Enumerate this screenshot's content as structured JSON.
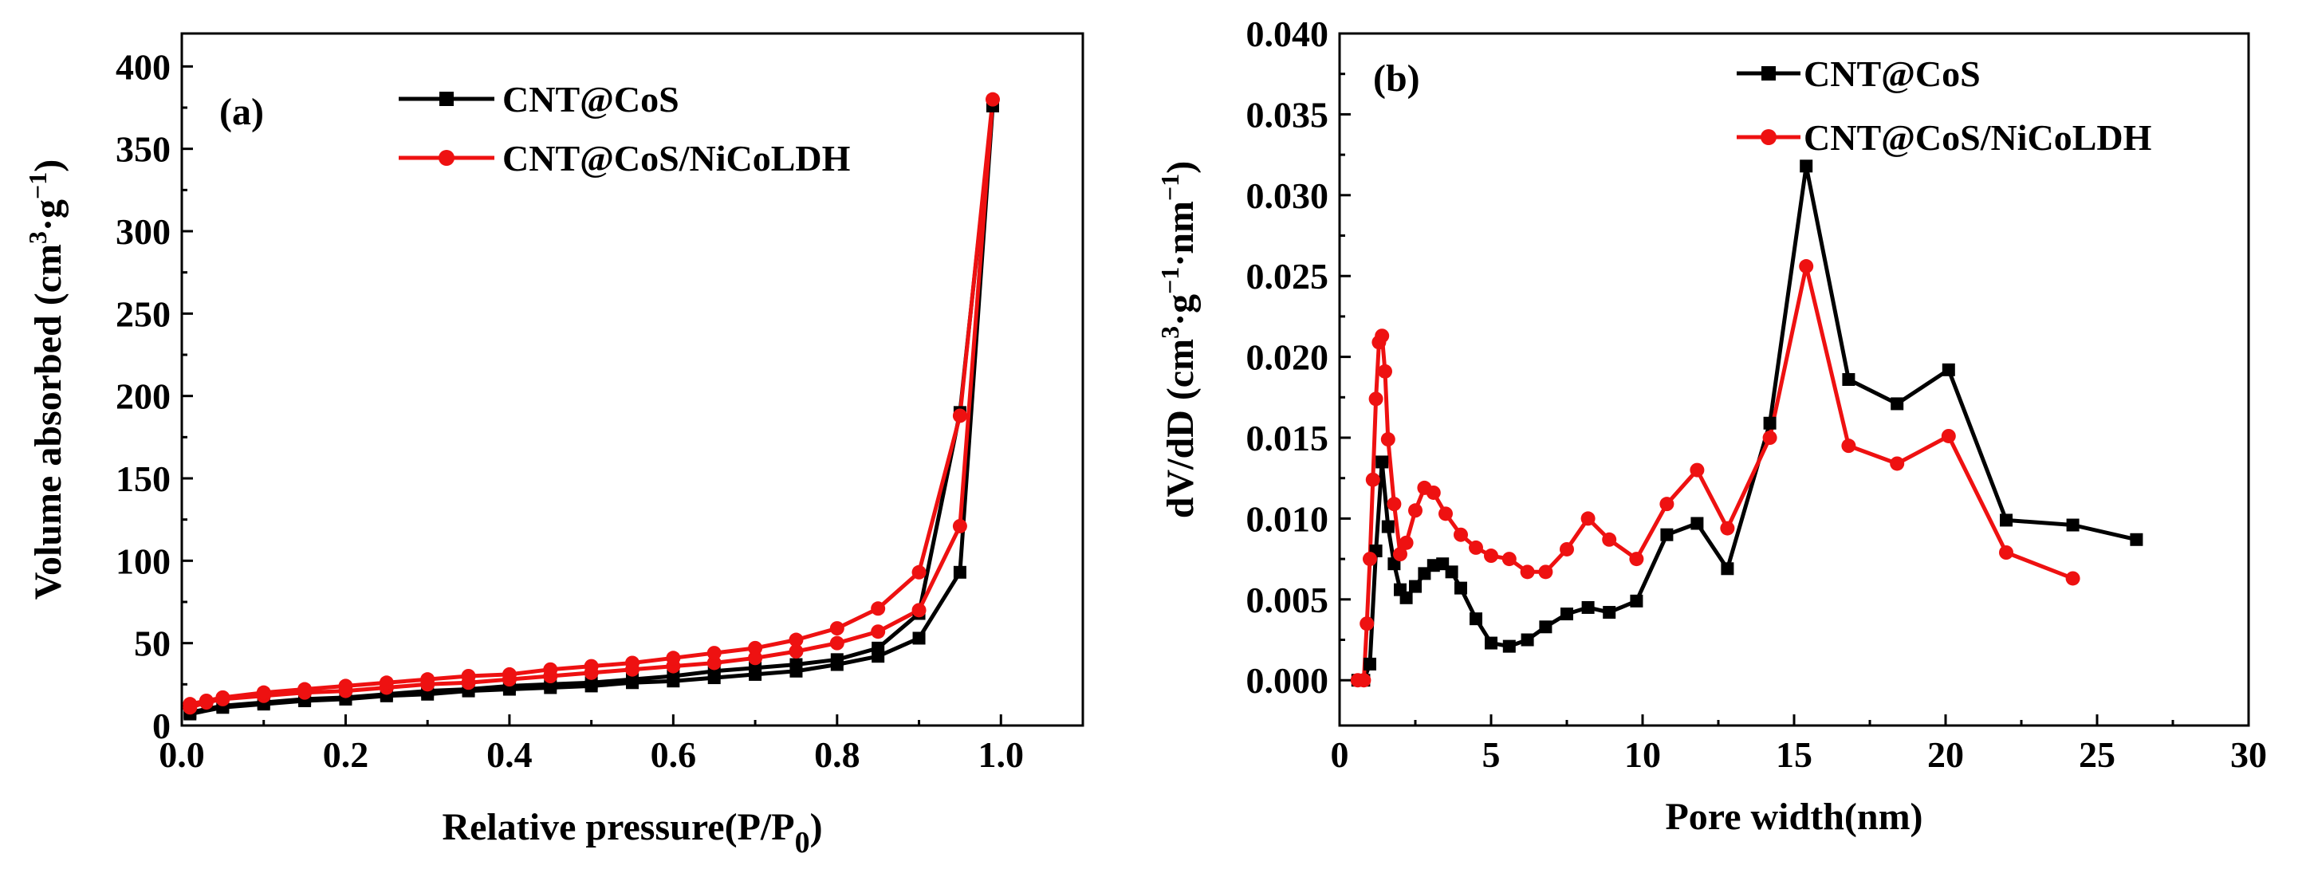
{
  "chart_data": [
    {
      "type": "line",
      "panel_label": "(a)",
      "xlabel": "Relative pressure(P/P",
      "xlabel_sub": "0",
      "xlabel_close": ")",
      "ylabel": "Volume absorbed (cm",
      "ylabel_sup1": "3",
      "ylabel_mid": "·g",
      "ylabel_sup2": "−1",
      "ylabel_close": ")",
      "xlim": [
        0.0,
        1.1
      ],
      "ylim": [
        0,
        420
      ],
      "xticks": [
        0.0,
        0.2,
        0.4,
        0.6,
        0.8,
        1.0
      ],
      "xtick_labels": [
        "0.0",
        "0.2",
        "0.4",
        "0.6",
        "0.8",
        "1.0"
      ],
      "yticks": [
        0,
        50,
        100,
        150,
        200,
        250,
        300,
        350,
        400
      ],
      "ytick_labels": [
        "0",
        "50",
        "100",
        "150",
        "200",
        "250",
        "300",
        "350",
        "400"
      ],
      "legend_position": "top-center",
      "series": [
        {
          "name": "CNT@CoS",
          "color": "#000000",
          "marker": "square",
          "x": [
            0.01,
            0.05,
            0.1,
            0.15,
            0.2,
            0.25,
            0.3,
            0.35,
            0.4,
            0.45,
            0.5,
            0.55,
            0.6,
            0.65,
            0.7,
            0.75,
            0.8,
            0.85,
            0.9,
            0.95,
            0.99,
            0.95,
            0.9,
            0.85,
            0.8,
            0.75,
            0.7,
            0.65,
            0.6,
            0.55,
            0.5,
            0.45,
            0.4,
            0.35,
            0.3,
            0.25,
            0.2,
            0.15,
            0.1,
            0.05,
            0.01
          ],
          "y": [
            7,
            11,
            13,
            15,
            16,
            18,
            19,
            21,
            22,
            23,
            24,
            26,
            27,
            29,
            31,
            33,
            37,
            42,
            53,
            93,
            376,
            190,
            68,
            47,
            40,
            37,
            35,
            33,
            30,
            28,
            26,
            25,
            24,
            22,
            21,
            19,
            17,
            16,
            14,
            12,
            8
          ]
        },
        {
          "name": "CNT@CoS/NiCoLDH",
          "color": "#ee1111",
          "marker": "circle",
          "x": [
            0.01,
            0.03,
            0.05,
            0.1,
            0.15,
            0.2,
            0.25,
            0.3,
            0.35,
            0.4,
            0.45,
            0.5,
            0.55,
            0.6,
            0.65,
            0.7,
            0.75,
            0.8,
            0.85,
            0.9,
            0.95,
            0.99,
            0.95,
            0.9,
            0.85,
            0.8,
            0.75,
            0.7,
            0.65,
            0.6,
            0.55,
            0.5,
            0.45,
            0.4,
            0.35,
            0.3,
            0.25,
            0.2,
            0.15,
            0.1,
            0.05,
            0.03,
            0.01
          ],
          "y": [
            11,
            14,
            16,
            18,
            20,
            21,
            23,
            25,
            26,
            28,
            30,
            32,
            34,
            36,
            38,
            41,
            45,
            50,
            57,
            70,
            121,
            380,
            188,
            93,
            71,
            59,
            52,
            47,
            44,
            41,
            38,
            36,
            34,
            31,
            30,
            28,
            26,
            24,
            22,
            20,
            17,
            15,
            13
          ]
        }
      ]
    },
    {
      "type": "line",
      "panel_label": "(b)",
      "xlabel": "Pore width(nm)",
      "ylabel": "dV/dD (cm",
      "ylabel_sup1": "3",
      "ylabel_mid": "·g",
      "ylabel_sup2": "−1",
      "ylabel_mid2": "·nm",
      "ylabel_sup3": "−1",
      "ylabel_close": ")",
      "xlim": [
        0,
        30
      ],
      "ylim": [
        -0.0028,
        0.04
      ],
      "xticks": [
        0,
        5,
        10,
        15,
        20,
        25,
        30
      ],
      "xtick_labels": [
        "0",
        "5",
        "10",
        "15",
        "20",
        "25",
        "30"
      ],
      "yticks": [
        0.0,
        0.005,
        0.01,
        0.015,
        0.02,
        0.025,
        0.03,
        0.035,
        0.04
      ],
      "ytick_labels": [
        "0.000",
        "0.005",
        "0.010",
        "0.015",
        "0.020",
        "0.025",
        "0.030",
        "0.035",
        "0.040"
      ],
      "legend_position": "top-center",
      "series": [
        {
          "name": "CNT@CoS",
          "color": "#000000",
          "marker": "square",
          "x": [
            0.6,
            0.8,
            1.0,
            1.2,
            1.4,
            1.6,
            1.8,
            2.0,
            2.2,
            2.5,
            2.8,
            3.1,
            3.4,
            3.7,
            4.0,
            4.5,
            5.0,
            5.6,
            6.2,
            6.8,
            7.5,
            8.2,
            8.9,
            9.8,
            10.8,
            11.8,
            12.8,
            14.2,
            15.4,
            16.8,
            18.4,
            20.1,
            22.0,
            24.2,
            26.3
          ],
          "y": [
            0.0,
            0.0,
            0.001,
            0.008,
            0.0135,
            0.0095,
            0.0072,
            0.0056,
            0.0051,
            0.0058,
            0.0066,
            0.0071,
            0.0072,
            0.0067,
            0.0057,
            0.0038,
            0.0023,
            0.0021,
            0.0025,
            0.0033,
            0.0041,
            0.0045,
            0.0042,
            0.0049,
            0.009,
            0.0097,
            0.0069,
            0.0159,
            0.0318,
            0.0186,
            0.0171,
            0.0192,
            0.0099,
            0.0096,
            0.0087
          ]
        },
        {
          "name": "CNT@CoS/NiCoLDH",
          "color": "#ee1111",
          "marker": "circle",
          "x": [
            0.6,
            0.8,
            0.9,
            1.0,
            1.1,
            1.2,
            1.3,
            1.4,
            1.5,
            1.6,
            1.8,
            2.0,
            2.2,
            2.5,
            2.8,
            3.1,
            3.5,
            4.0,
            4.5,
            5.0,
            5.6,
            6.2,
            6.8,
            7.5,
            8.2,
            8.9,
            9.8,
            10.8,
            11.8,
            12.8,
            14.2,
            15.4,
            16.8,
            18.4,
            20.1,
            22.0,
            24.2
          ],
          "y": [
            0.0,
            0.0,
            0.0035,
            0.0075,
            0.0124,
            0.0174,
            0.0209,
            0.0213,
            0.0191,
            0.0149,
            0.0109,
            0.0078,
            0.0085,
            0.0105,
            0.0119,
            0.0116,
            0.0103,
            0.009,
            0.0082,
            0.0077,
            0.0075,
            0.0067,
            0.0067,
            0.0081,
            0.01,
            0.0087,
            0.0075,
            0.0109,
            0.013,
            0.0094,
            0.015,
            0.0256,
            0.0145,
            0.0134,
            0.0151,
            0.0079,
            0.0063
          ]
        }
      ]
    }
  ]
}
